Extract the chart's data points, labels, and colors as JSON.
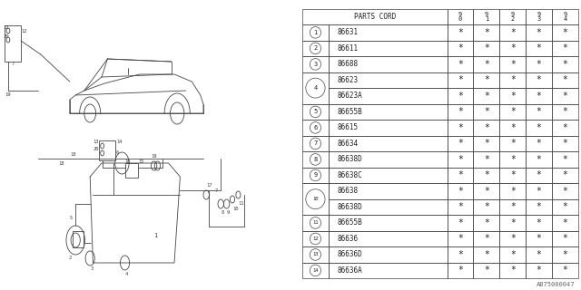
{
  "bg_color": "#ffffff",
  "table_header": "PARTS CORD",
  "columns": [
    "9\n0",
    "9\n1",
    "9\n2",
    "9\n3",
    "9\n4"
  ],
  "rows": [
    {
      "num": "1",
      "part": "86631",
      "has_sub": false
    },
    {
      "num": "2",
      "part": "86611",
      "has_sub": false
    },
    {
      "num": "3",
      "part": "86688",
      "has_sub": false
    },
    {
      "num": "4",
      "part": "86623",
      "has_sub": true,
      "sub": "86623A"
    },
    {
      "num": "5",
      "part": "86655B",
      "has_sub": false
    },
    {
      "num": "6",
      "part": "86615",
      "has_sub": false
    },
    {
      "num": "7",
      "part": "86634",
      "has_sub": false
    },
    {
      "num": "8",
      "part": "86638D",
      "has_sub": false
    },
    {
      "num": "9",
      "part": "86638C",
      "has_sub": false
    },
    {
      "num": "10",
      "part": "86638",
      "has_sub": true,
      "sub": "86638D"
    },
    {
      "num": "11",
      "part": "86655B",
      "has_sub": false
    },
    {
      "num": "12",
      "part": "86636",
      "has_sub": false
    },
    {
      "num": "13",
      "part": "86636D",
      "has_sub": false
    },
    {
      "num": "14",
      "part": "86636A",
      "has_sub": false
    }
  ],
  "watermark": "AB75000047",
  "line_color": "#444444",
  "lw": 0.6
}
